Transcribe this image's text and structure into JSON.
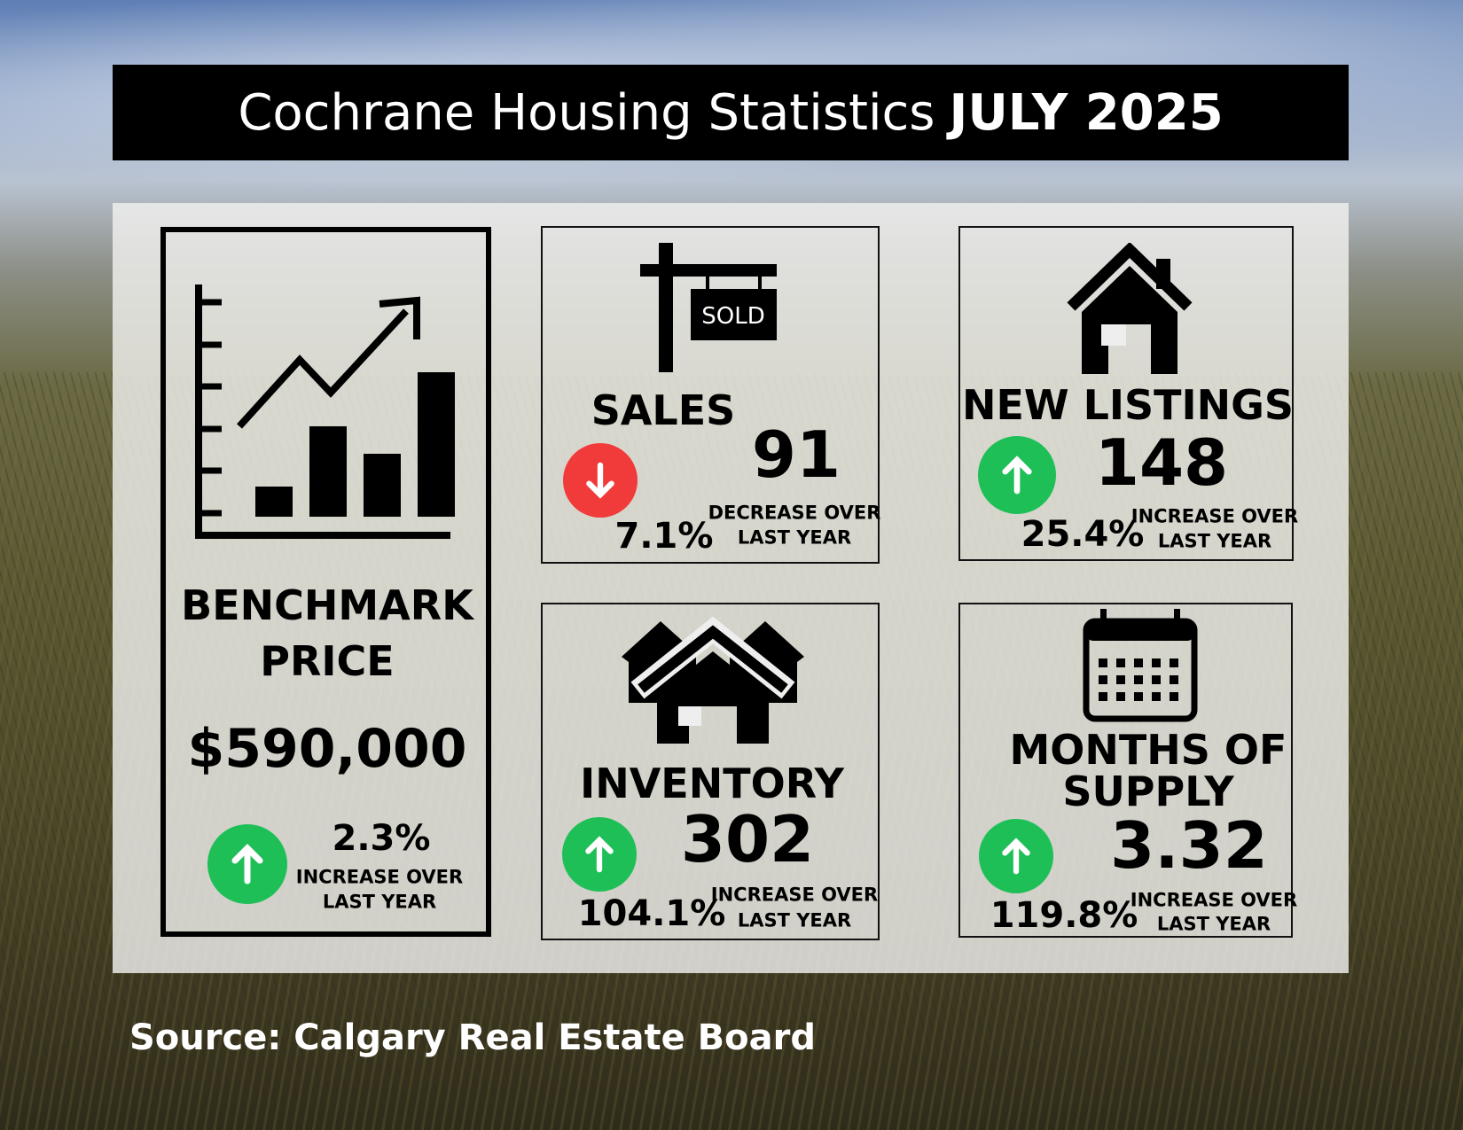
{
  "title": {
    "main": "Cochrane Housing Statistics",
    "period": "JULY 2025"
  },
  "colors": {
    "up": "#1fbf58",
    "down": "#f13a3a"
  },
  "benchmark": {
    "label1": "BENCHMARK",
    "label2": "PRICE",
    "value": "$590,000",
    "change": "2.3%",
    "note1": "INCREASE OVER",
    "note2": "LAST YEAR",
    "direction": "up",
    "icon": "chart-growth-icon"
  },
  "sales": {
    "label": "SALES",
    "value": "91",
    "change": "7.1%",
    "note1": "DECREASE OVER",
    "note2": "LAST YEAR",
    "direction": "down",
    "icon": "sold-sign-icon",
    "sign_text": "SOLD"
  },
  "new_listings": {
    "label": "NEW LISTINGS",
    "value": "148",
    "change": "25.4%",
    "note1": "INCREASE OVER",
    "note2": "LAST YEAR",
    "direction": "up",
    "icon": "house-icon"
  },
  "inventory": {
    "label": "INVENTORY",
    "value": "302",
    "change": "104.1%",
    "note1": "INCREASE OVER",
    "note2": "LAST YEAR",
    "direction": "up",
    "icon": "houses-icon"
  },
  "months_supply": {
    "label1": "MONTHS OF",
    "label2": "SUPPLY",
    "value": "3.32",
    "change": "119.8%",
    "note1": "INCREASE OVER",
    "note2": "LAST YEAR",
    "direction": "up",
    "icon": "calendar-icon"
  },
  "source": "Source: Calgary Real Estate Board"
}
